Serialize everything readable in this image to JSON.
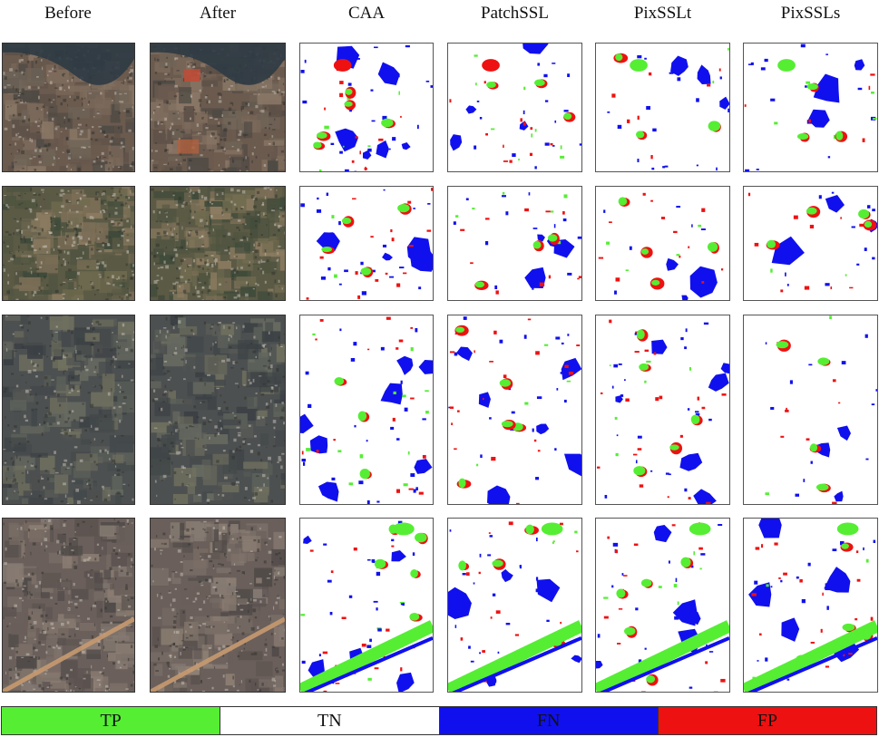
{
  "columns": [
    "Before",
    "After",
    "CAA",
    "PatchSSL",
    "PixSSLt",
    "PixSSLs"
  ],
  "legend": [
    {
      "label": "TP",
      "color": "#55ee33"
    },
    {
      "label": "TN",
      "color": "#ffffff"
    },
    {
      "label": "FN",
      "color": "#1010ee"
    },
    {
      "label": "FP",
      "color": "#ee1111"
    }
  ],
  "colors": {
    "tp": "#55ee33",
    "fn": "#1010ee",
    "fp": "#ee1111"
  }
}
